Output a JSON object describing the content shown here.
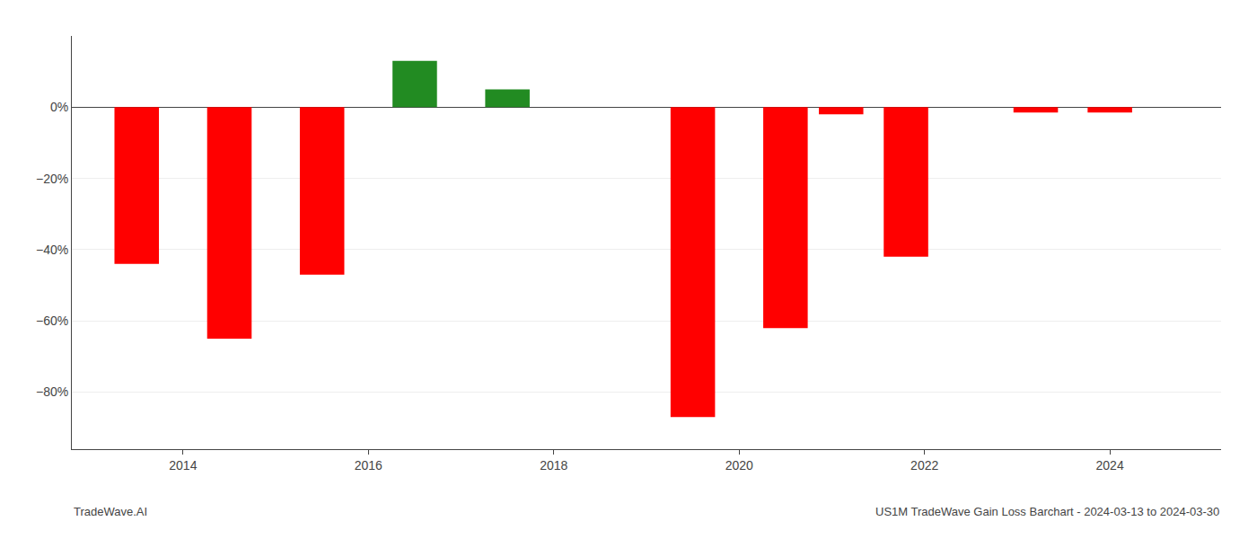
{
  "chart_data": {
    "type": "bar",
    "x": [
      2013.5,
      2014.5,
      2015.5,
      2016.5,
      2017.5,
      2019.5,
      2020.5,
      2021.1,
      2021.8,
      2023.2,
      2024.0
    ],
    "values": [
      -0.44,
      -0.65,
      -0.47,
      0.13,
      0.05,
      -0.87,
      -0.62,
      -0.02,
      -0.42,
      -0.015,
      -0.015
    ],
    "colors": [
      "#ff0000",
      "#ff0000",
      "#ff0000",
      "#228B22",
      "#228B22",
      "#ff0000",
      "#ff0000",
      "#ff0000",
      "#ff0000",
      "#ff0000",
      "#ff0000"
    ],
    "ylim": [
      -0.96,
      0.2
    ],
    "yticks": [
      {
        "value": 0.0,
        "label": "0%"
      },
      {
        "value": -0.2,
        "label": "−20%"
      },
      {
        "value": -0.4,
        "label": "−40%"
      },
      {
        "value": -0.6,
        "label": "−60%"
      },
      {
        "value": -0.8,
        "label": "−80%"
      }
    ],
    "xlim": [
      2012.8,
      2025.2
    ],
    "xticks": [
      2014,
      2016,
      2018,
      2020,
      2022,
      2024
    ],
    "grid": true,
    "annotations": [
      "TradeWave.AI",
      "US1M TradeWave Gain Loss Barchart - 2024-03-13 to 2024-03-30"
    ]
  }
}
